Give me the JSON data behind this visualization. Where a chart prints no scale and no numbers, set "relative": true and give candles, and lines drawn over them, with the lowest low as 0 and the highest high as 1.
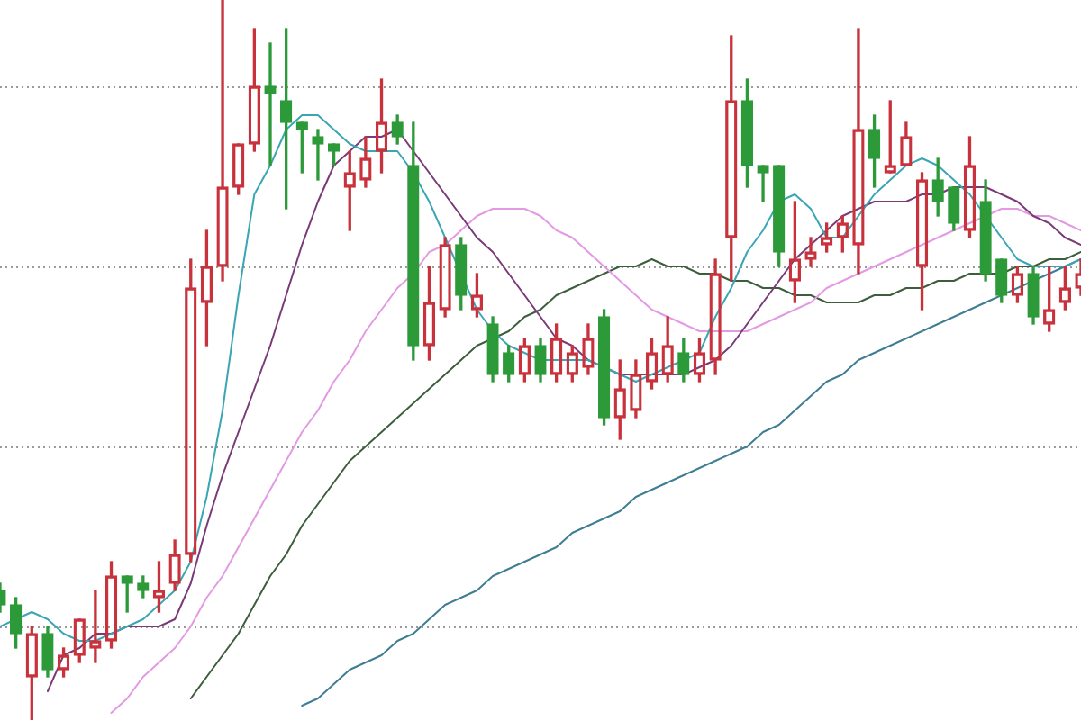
{
  "chart_data": {
    "type": "candlestick",
    "relative": true,
    "categories": [
      null,
      null,
      null,
      null,
      null,
      null,
      null,
      null,
      null,
      null,
      null,
      null,
      null,
      null,
      null,
      null,
      null,
      null,
      null,
      null,
      null,
      null,
      null,
      null,
      null,
      null,
      null,
      null,
      null,
      null,
      null,
      null,
      null,
      null,
      null,
      null,
      null,
      null,
      null,
      null,
      null,
      null,
      null,
      null,
      null,
      null,
      null,
      null,
      null,
      null,
      null,
      null,
      null,
      null,
      null,
      null,
      null,
      null,
      null,
      null,
      null,
      null,
      null,
      null,
      null,
      null,
      null,
      null,
      null
    ],
    "ohlc": [
      [
        0.18,
        0.19,
        0.15,
        0.16
      ],
      [
        0.16,
        0.17,
        0.1,
        0.12
      ],
      [
        0.06,
        0.13,
        0.0,
        0.12
      ],
      [
        0.12,
        0.13,
        0.06,
        0.07
      ],
      [
        0.07,
        0.1,
        0.06,
        0.09
      ],
      [
        0.09,
        0.14,
        0.08,
        0.14
      ],
      [
        0.1,
        0.18,
        0.08,
        0.11
      ],
      [
        0.11,
        0.22,
        0.1,
        0.2
      ],
      [
        0.2,
        0.2,
        0.15,
        0.19
      ],
      [
        0.19,
        0.2,
        0.17,
        0.18
      ],
      [
        0.17,
        0.22,
        0.15,
        0.18
      ],
      [
        0.19,
        0.25,
        0.18,
        0.23
      ],
      [
        0.23,
        0.64,
        0.22,
        0.6
      ],
      [
        0.58,
        0.68,
        0.52,
        0.63
      ],
      [
        0.63,
        1.0,
        0.61,
        0.74
      ],
      [
        0.74,
        0.8,
        0.73,
        0.8
      ],
      [
        0.8,
        0.96,
        0.79,
        0.88
      ],
      [
        0.88,
        0.94,
        0.77,
        0.87
      ],
      [
        0.86,
        0.96,
        0.71,
        0.83
      ],
      [
        0.83,
        0.83,
        0.76,
        0.82
      ],
      [
        0.81,
        0.82,
        0.75,
        0.8
      ],
      [
        0.8,
        0.8,
        0.77,
        0.79
      ],
      [
        0.74,
        0.79,
        0.68,
        0.76
      ],
      [
        0.75,
        0.81,
        0.74,
        0.78
      ],
      [
        0.79,
        0.89,
        0.76,
        0.83
      ],
      [
        0.83,
        0.84,
        0.8,
        0.81
      ],
      [
        0.77,
        0.83,
        0.5,
        0.52
      ],
      [
        0.52,
        0.63,
        0.5,
        0.58
      ],
      [
        0.57,
        0.67,
        0.56,
        0.66
      ],
      [
        0.66,
        0.67,
        0.57,
        0.59
      ],
      [
        0.57,
        0.62,
        0.56,
        0.59
      ],
      [
        0.55,
        0.56,
        0.47,
        0.48
      ],
      [
        0.51,
        0.52,
        0.47,
        0.48
      ],
      [
        0.48,
        0.53,
        0.47,
        0.52
      ],
      [
        0.52,
        0.53,
        0.47,
        0.48
      ],
      [
        0.48,
        0.55,
        0.47,
        0.53
      ],
      [
        0.48,
        0.52,
        0.47,
        0.51
      ],
      [
        0.49,
        0.55,
        0.48,
        0.53
      ],
      [
        0.56,
        0.57,
        0.41,
        0.42
      ],
      [
        0.42,
        0.5,
        0.39,
        0.46
      ],
      [
        0.43,
        0.5,
        0.42,
        0.48
      ],
      [
        0.47,
        0.53,
        0.46,
        0.51
      ],
      [
        0.48,
        0.56,
        0.47,
        0.52
      ],
      [
        0.51,
        0.53,
        0.47,
        0.48
      ],
      [
        0.48,
        0.53,
        0.47,
        0.51
      ],
      [
        0.5,
        0.64,
        0.48,
        0.62
      ],
      [
        0.67,
        0.95,
        0.61,
        0.86
      ],
      [
        0.86,
        0.89,
        0.74,
        0.77
      ],
      [
        0.77,
        0.77,
        0.72,
        0.76
      ],
      [
        0.77,
        0.77,
        0.63,
        0.65
      ],
      [
        0.61,
        0.72,
        0.58,
        0.64
      ],
      [
        0.64,
        0.67,
        0.63,
        0.65
      ],
      [
        0.66,
        0.69,
        0.65,
        0.67
      ],
      [
        0.67,
        0.7,
        0.65,
        0.69
      ],
      [
        0.66,
        0.96,
        0.62,
        0.82
      ],
      [
        0.82,
        0.84,
        0.74,
        0.78
      ],
      [
        0.76,
        0.86,
        0.76,
        0.77
      ],
      [
        0.77,
        0.83,
        0.77,
        0.81
      ],
      [
        0.63,
        0.76,
        0.57,
        0.75
      ],
      [
        0.75,
        0.78,
        0.7,
        0.72
      ],
      [
        0.74,
        0.74,
        0.68,
        0.69
      ],
      [
        0.68,
        0.81,
        0.67,
        0.77
      ],
      [
        0.72,
        0.75,
        0.61,
        0.62
      ],
      [
        0.64,
        0.64,
        0.58,
        0.59
      ],
      [
        0.59,
        0.63,
        0.58,
        0.62
      ],
      [
        0.62,
        0.63,
        0.55,
        0.56
      ],
      [
        0.55,
        0.63,
        0.54,
        0.57
      ],
      [
        0.58,
        0.63,
        0.57,
        0.6
      ],
      [
        0.6,
        0.64,
        0.59,
        0.62
      ]
    ],
    "colors": [
      "#2d9a3a",
      "#2d9a3a",
      "#c8323c",
      "#2d9a3a",
      "#c8323c",
      "#c8323c",
      "#c8323c",
      "#c8323c",
      "#2d9a3a",
      "#2d9a3a",
      "#c8323c",
      "#c8323c",
      "#c8323c",
      "#c8323c",
      "#c8323c",
      "#c8323c",
      "#c8323c",
      "#2d9a3a",
      "#2d9a3a",
      "#2d9a3a",
      "#2d9a3a",
      "#2d9a3a",
      "#c8323c",
      "#c8323c",
      "#c8323c",
      "#2d9a3a",
      "#2d9a3a",
      "#c8323c",
      "#c8323c",
      "#2d9a3a",
      "#c8323c",
      "#2d9a3a",
      "#2d9a3a",
      "#c8323c",
      "#2d9a3a",
      "#c8323c",
      "#c8323c",
      "#c8323c",
      "#2d9a3a",
      "#c8323c",
      "#c8323c",
      "#c8323c",
      "#c8323c",
      "#2d9a3a",
      "#c8323c",
      "#c8323c",
      "#c8323c",
      "#2d9a3a",
      "#2d9a3a",
      "#2d9a3a",
      "#c8323c",
      "#c8323c",
      "#c8323c",
      "#c8323c",
      "#c8323c",
      "#2d9a3a",
      "#c8323c",
      "#c8323c",
      "#c8323c",
      "#2d9a3a",
      "#2d9a3a",
      "#c8323c",
      "#2d9a3a",
      "#2d9a3a",
      "#c8323c",
      "#2d9a3a",
      "#c8323c",
      "#c8323c",
      "#c8323c"
    ],
    "series": [
      {
        "type": "line",
        "color": "#3aa6b4",
        "values": [
          0.13,
          0.14,
          0.15,
          0.14,
          0.12,
          0.11,
          0.11,
          0.12,
          0.13,
          0.14,
          0.16,
          0.18,
          0.22,
          0.31,
          0.43,
          0.59,
          0.73,
          0.77,
          0.82,
          0.84,
          0.84,
          0.82,
          0.8,
          0.79,
          0.79,
          0.79,
          0.76,
          0.72,
          0.67,
          null,
          0.57,
          0.54,
          0.52,
          0.51,
          0.5,
          0.5,
          0.5,
          0.5,
          0.49,
          0.48,
          0.47,
          0.48,
          0.49,
          0.5,
          0.51,
          0.56,
          0.6,
          0.65,
          0.68,
          0.72,
          0.73,
          0.71,
          0.67,
          0.67,
          0.7,
          0.73,
          0.75,
          0.77,
          0.78,
          0.77,
          0.75,
          0.73,
          0.7,
          0.67,
          0.64,
          0.63,
          0.63,
          0.63,
          0.64
        ]
      },
      {
        "type": "line",
        "color": "#7a3a78",
        "values": [
          null,
          null,
          null,
          0.04,
          0.09,
          0.1,
          0.12,
          0.12,
          0.13,
          0.13,
          0.13,
          0.14,
          0.19,
          0.27,
          0.34,
          0.4,
          0.46,
          0.52,
          0.59,
          0.66,
          0.72,
          0.77,
          0.79,
          0.81,
          0.81,
          0.82,
          0.79,
          0.76,
          0.73,
          0.7,
          0.67,
          0.65,
          0.62,
          0.59,
          0.56,
          0.53,
          0.52,
          0.5,
          null,
          0.48,
          0.48,
          0.48,
          0.48,
          0.48,
          0.49,
          0.5,
          0.52,
          0.55,
          0.58,
          0.61,
          0.64,
          0.66,
          0.68,
          0.7,
          0.71,
          0.72,
          0.72,
          0.72,
          0.73,
          0.73,
          0.74,
          0.74,
          0.74,
          0.73,
          0.72,
          0.7,
          0.69,
          0.67,
          0.66
        ]
      },
      {
        "type": "line",
        "color": "#e39ae3",
        "values": [
          null,
          null,
          null,
          null,
          null,
          null,
          null,
          0.01,
          0.03,
          0.06,
          0.08,
          0.1,
          0.13,
          0.17,
          0.2,
          0.24,
          0.28,
          0.32,
          0.36,
          0.4,
          0.43,
          0.47,
          0.5,
          0.54,
          0.57,
          0.6,
          0.62,
          0.65,
          0.66,
          0.68,
          0.7,
          0.71,
          0.71,
          0.71,
          0.7,
          0.68,
          0.67,
          0.65,
          0.63,
          0.61,
          0.59,
          0.57,
          0.56,
          0.55,
          0.54,
          0.54,
          0.54,
          0.54,
          0.55,
          0.56,
          0.57,
          0.58,
          0.6,
          0.61,
          0.62,
          0.63,
          0.64,
          0.65,
          0.66,
          0.67,
          0.68,
          0.69,
          0.7,
          0.71,
          0.71,
          0.7,
          0.7,
          0.69,
          0.68
        ]
      },
      {
        "type": "line",
        "color": "#3d5e3d",
        "values": [
          null,
          null,
          null,
          null,
          null,
          null,
          null,
          null,
          null,
          null,
          null,
          null,
          0.03,
          0.06,
          0.09,
          0.12,
          0.16,
          0.2,
          0.23,
          0.27,
          0.3,
          0.33,
          0.36,
          0.38,
          0.4,
          0.42,
          0.44,
          0.46,
          0.48,
          0.5,
          0.52,
          0.53,
          0.54,
          0.56,
          0.57,
          0.59,
          0.6,
          0.61,
          0.62,
          0.63,
          0.63,
          0.64,
          0.63,
          0.63,
          0.62,
          0.62,
          0.61,
          0.61,
          0.6,
          0.6,
          0.59,
          0.59,
          0.58,
          0.58,
          0.58,
          0.59,
          0.59,
          0.6,
          0.6,
          0.61,
          0.61,
          0.62,
          0.62,
          0.62,
          0.63,
          0.63,
          0.64,
          0.64,
          0.65
        ]
      },
      {
        "type": "line",
        "color": "#3f7d92",
        "values": [
          null,
          null,
          null,
          null,
          null,
          null,
          null,
          null,
          null,
          null,
          null,
          null,
          null,
          null,
          null,
          null,
          null,
          null,
          null,
          0.02,
          0.03,
          0.05,
          0.07,
          0.08,
          0.09,
          0.11,
          0.12,
          0.14,
          0.16,
          0.17,
          0.18,
          0.2,
          0.21,
          0.22,
          0.23,
          0.24,
          0.26,
          0.27,
          0.28,
          0.29,
          0.31,
          0.32,
          0.33,
          0.34,
          0.35,
          0.36,
          0.37,
          0.38,
          0.4,
          0.41,
          0.43,
          0.45,
          0.47,
          0.48,
          0.5,
          0.51,
          0.52,
          0.53,
          0.54,
          0.55,
          0.56,
          0.57,
          0.58,
          0.59,
          0.6,
          0.61,
          0.62,
          0.63,
          0.64
        ]
      }
    ],
    "ref_lines": [
      {
        "axis": "y",
        "value": 0.13,
        "color": "#9a9a9a",
        "line_style": "dotted"
      },
      {
        "axis": "y",
        "value": 0.38,
        "color": "#9a9a9a",
        "line_style": "dotted"
      },
      {
        "axis": "y",
        "value": 0.63,
        "color": "#9a9a9a",
        "line_style": "dotted"
      },
      {
        "axis": "y",
        "value": 0.88,
        "color": "#9a9a9a",
        "line_style": "dotted"
      }
    ],
    "tick_labels": false
  }
}
